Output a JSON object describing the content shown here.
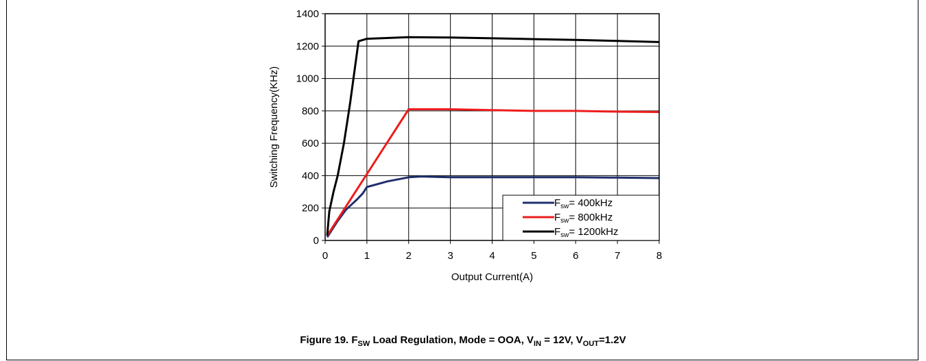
{
  "caption": {
    "figure": "Figure 19.",
    "f": "F",
    "f_sub": "SW",
    "text1": " Load Regulation, Mode = OOA, V",
    "vin_sub": "IN",
    "text2": " = 12V, V",
    "vout_sub": "OUT",
    "text3": "=1.2V"
  },
  "chart_data": {
    "type": "line",
    "title": "",
    "xlabel": "Output Current(A)",
    "ylabel": "Switching Frequency(KHz)",
    "xlim": [
      0,
      8
    ],
    "ylim": [
      0,
      1400
    ],
    "xticks": [
      0,
      1,
      2,
      3,
      4,
      5,
      6,
      7,
      8
    ],
    "yticks": [
      0,
      200,
      400,
      600,
      800,
      1000,
      1200,
      1400
    ],
    "grid": true,
    "legend_position": "bottom-right",
    "series": [
      {
        "name": "F",
        "name_sub": "sw",
        "name_rest": "= 400kHz",
        "color": "#1f2f6b",
        "x": [
          0.05,
          0.15,
          0.3,
          0.5,
          0.75,
          0.9,
          1.0,
          1.5,
          2.0,
          2.3,
          3.0,
          4.0,
          5.0,
          6.0,
          7.0,
          8.0
        ],
        "y": [
          20,
          60,
          120,
          190,
          250,
          290,
          330,
          365,
          390,
          395,
          390,
          390,
          390,
          390,
          388,
          385
        ]
      },
      {
        "name": "F",
        "name_sub": "sw",
        "name_rest": "= 800kHz",
        "color": "#ee1c1c",
        "x": [
          0.05,
          0.5,
          1.0,
          1.5,
          2.0,
          3.0,
          4.0,
          5.0,
          6.0,
          7.0,
          8.0
        ],
        "y": [
          30,
          210,
          410,
          610,
          810,
          810,
          805,
          800,
          800,
          795,
          793
        ]
      },
      {
        "name": "F",
        "name_sub": "sw",
        "name_rest": "= 1200kHz",
        "color": "#000000",
        "x": [
          0.05,
          0.1,
          0.2,
          0.3,
          0.45,
          0.6,
          0.8,
          1.0,
          2.0,
          3.0,
          4.0,
          5.0,
          6.0,
          7.0,
          8.0
        ],
        "y": [
          30,
          180,
          300,
          400,
          600,
          850,
          1230,
          1245,
          1255,
          1253,
          1248,
          1243,
          1238,
          1232,
          1225
        ]
      }
    ]
  }
}
